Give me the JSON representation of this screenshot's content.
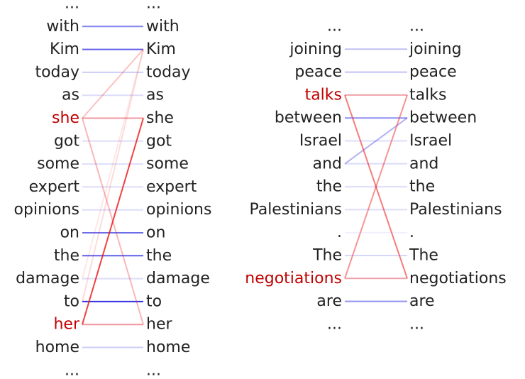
{
  "colors": {
    "text": "#222222",
    "highlight": "#c00000",
    "positive_line": "#0000dd",
    "negative_line": "#ee1111"
  },
  "panels": [
    {
      "id": "left",
      "left_tokens": [
        "...",
        "with",
        "Kim",
        "today",
        "as",
        "she",
        "got",
        "some",
        "expert",
        "opinions",
        "on",
        "the",
        "damage",
        "to",
        "her",
        "home",
        "..."
      ],
      "right_tokens": [
        "...",
        "with",
        "Kim",
        "today",
        "as",
        "she",
        "got",
        "some",
        "expert",
        "opinions",
        "on",
        "the",
        "damage",
        "to",
        "her",
        "home",
        "..."
      ],
      "highlighted_left": [
        5,
        14
      ],
      "links": [
        {
          "from": 1,
          "to": 1,
          "polarity": "positive",
          "strength": 0.45
        },
        {
          "from": 2,
          "to": 2,
          "polarity": "positive",
          "strength": 0.6
        },
        {
          "from": 3,
          "to": 3,
          "polarity": "positive",
          "strength": 0.15
        },
        {
          "from": 4,
          "to": 4,
          "polarity": "positive",
          "strength": 0.08
        },
        {
          "from": 6,
          "to": 6,
          "polarity": "positive",
          "strength": 0.08
        },
        {
          "from": 7,
          "to": 7,
          "polarity": "positive",
          "strength": 0.08
        },
        {
          "from": 8,
          "to": 8,
          "polarity": "positive",
          "strength": 0.08
        },
        {
          "from": 9,
          "to": 9,
          "polarity": "positive",
          "strength": 0.08
        },
        {
          "from": 10,
          "to": 10,
          "polarity": "positive",
          "strength": 0.55
        },
        {
          "from": 11,
          "to": 11,
          "polarity": "positive",
          "strength": 0.6
        },
        {
          "from": 12,
          "to": 12,
          "polarity": "positive",
          "strength": 0.08
        },
        {
          "from": 13,
          "to": 13,
          "polarity": "positive",
          "strength": 0.8
        },
        {
          "from": 15,
          "to": 15,
          "polarity": "positive",
          "strength": 0.15
        },
        {
          "from": 5,
          "to": 5,
          "polarity": "negative",
          "strength": 0.4
        },
        {
          "from": 5,
          "to": 2,
          "polarity": "negative",
          "strength": 0.25
        },
        {
          "from": 5,
          "to": 14,
          "polarity": "negative",
          "strength": 0.3
        },
        {
          "from": 14,
          "to": 14,
          "polarity": "negative",
          "strength": 0.4
        },
        {
          "from": 14,
          "to": 5,
          "polarity": "negative",
          "strength": 0.8
        },
        {
          "from": 13,
          "to": 2,
          "polarity": "negative",
          "strength": 0.15
        },
        {
          "from": 12,
          "to": 2,
          "polarity": "negative",
          "strength": 0.1
        }
      ]
    },
    {
      "id": "right",
      "left_tokens": [
        "...",
        "joining",
        "peace",
        "talks",
        "between",
        "Israel",
        "and",
        "the",
        "Palestinians",
        ".",
        "The",
        "negotiations",
        "are",
        "..."
      ],
      "right_tokens": [
        "...",
        "joining",
        "peace",
        "talks",
        "between",
        "Israel",
        "and",
        "the",
        "Palestinians",
        ".",
        "The",
        "negotiations",
        "are",
        "..."
      ],
      "highlighted_left": [
        3,
        11
      ],
      "links": [
        {
          "from": 1,
          "to": 1,
          "polarity": "positive",
          "strength": 0.2
        },
        {
          "from": 2,
          "to": 2,
          "polarity": "positive",
          "strength": 0.2
        },
        {
          "from": 4,
          "to": 4,
          "polarity": "positive",
          "strength": 0.4
        },
        {
          "from": 5,
          "to": 5,
          "polarity": "positive",
          "strength": 0.08
        },
        {
          "from": 6,
          "to": 4,
          "polarity": "positive",
          "strength": 0.3
        },
        {
          "from": 6,
          "to": 6,
          "polarity": "positive",
          "strength": 0.08
        },
        {
          "from": 7,
          "to": 7,
          "polarity": "positive",
          "strength": 0.08
        },
        {
          "from": 8,
          "to": 8,
          "polarity": "positive",
          "strength": 0.08
        },
        {
          "from": 10,
          "to": 10,
          "polarity": "positive",
          "strength": 0.1
        },
        {
          "from": 12,
          "to": 12,
          "polarity": "positive",
          "strength": 0.4
        },
        {
          "from": 3,
          "to": 3,
          "polarity": "negative",
          "strength": 0.35
        },
        {
          "from": 3,
          "to": 11,
          "polarity": "negative",
          "strength": 0.55
        },
        {
          "from": 11,
          "to": 11,
          "polarity": "negative",
          "strength": 0.35
        },
        {
          "from": 11,
          "to": 3,
          "polarity": "negative",
          "strength": 0.45
        }
      ]
    }
  ]
}
